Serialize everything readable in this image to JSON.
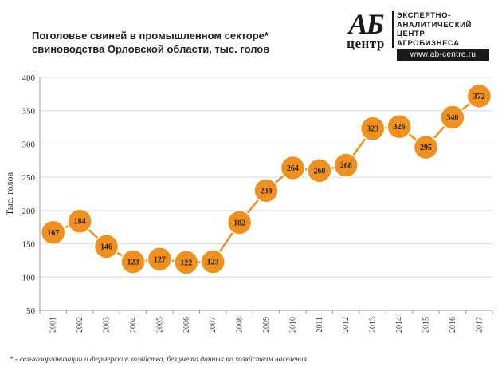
{
  "title": {
    "line1": "Поголовье свиней в промышленном секторе*",
    "line2": "свиноводства Орловской области, тыс. голов"
  },
  "logo": {
    "mark_top": "АБ",
    "mark_bottom": "центр",
    "lines": [
      "ЭКСПЕРТНО-",
      "АНАЛИТИЧЕСКИЙ",
      "ЦЕНТР",
      "АГРОБИЗНЕСА"
    ],
    "url": "www.ab-centre.ru"
  },
  "footnote": "* - сельхозорганизации и фермерские хозяйства, без учета данных по хозяйствам населения",
  "colors": {
    "series": "#F0901E",
    "marker_edge": "#ffffff",
    "grid": "#d9d9d9",
    "axis": "#999999"
  },
  "chart_data": {
    "type": "line",
    "title": "Поголовье свиней в промышленном секторе* свиноводства Орловской области, тыс. голов",
    "xlabel": "",
    "ylabel": "Тыс. голов",
    "ylim": [
      50,
      400
    ],
    "yticks": [
      50,
      100,
      150,
      200,
      250,
      300,
      350,
      400
    ],
    "grid": "horizontal",
    "categories": [
      "2001",
      "2002",
      "2003",
      "2004",
      "2005",
      "2006",
      "2007",
      "2008",
      "2009",
      "2010",
      "2011",
      "2012",
      "2013",
      "2014",
      "2015",
      "2016",
      "2017"
    ],
    "series": [
      {
        "name": "Поголовье свиней",
        "values": [
          167,
          184,
          146,
          123,
          127,
          122,
          123,
          182,
          230,
          264,
          260,
          268,
          323,
          326,
          295,
          340,
          372
        ]
      }
    ]
  }
}
